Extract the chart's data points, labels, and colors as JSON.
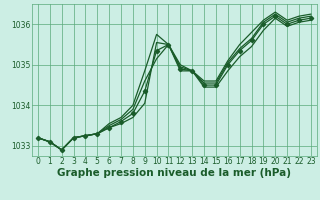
{
  "title": "Graphe pression niveau de la mer (hPa)",
  "bg_color": "#cceee4",
  "grid_color": "#5aaa7a",
  "line_color": "#1a5c2a",
  "xlim": [
    -0.5,
    23.5
  ],
  "ylim": [
    1032.75,
    1036.5
  ],
  "yticks": [
    1033,
    1034,
    1035,
    1036
  ],
  "xticks": [
    0,
    1,
    2,
    3,
    4,
    5,
    6,
    7,
    8,
    9,
    10,
    11,
    12,
    13,
    14,
    15,
    16,
    17,
    18,
    19,
    20,
    21,
    22,
    23
  ],
  "series": [
    {
      "y": [
        1033.2,
        1033.1,
        1032.9,
        1033.2,
        1033.25,
        1033.3,
        1033.45,
        1033.55,
        1033.7,
        1034.05,
        1035.55,
        1035.5,
        1034.85,
        1034.85,
        1034.45,
        1034.45,
        1034.85,
        1035.2,
        1035.45,
        1035.85,
        1036.15,
        1035.95,
        1036.05,
        1036.1
      ],
      "marker": false,
      "lw": 0.9
    },
    {
      "y": [
        1033.2,
        1033.1,
        1032.9,
        1033.2,
        1033.25,
        1033.3,
        1033.45,
        1033.6,
        1033.8,
        1034.35,
        1035.35,
        1035.5,
        1034.9,
        1034.85,
        1034.5,
        1034.5,
        1035.0,
        1035.35,
        1035.6,
        1036.0,
        1036.2,
        1036.0,
        1036.1,
        1036.15
      ],
      "marker": true,
      "lw": 0.9
    },
    {
      "y": [
        1033.2,
        1033.1,
        1032.9,
        1033.2,
        1033.25,
        1033.3,
        1033.5,
        1033.65,
        1033.9,
        1034.6,
        1035.15,
        1035.5,
        1034.95,
        1034.85,
        1034.55,
        1034.55,
        1035.05,
        1035.4,
        1035.65,
        1036.05,
        1036.25,
        1036.05,
        1036.15,
        1036.2
      ],
      "marker": false,
      "lw": 0.9
    },
    {
      "y": [
        1033.2,
        1033.1,
        1032.9,
        1033.2,
        1033.25,
        1033.3,
        1033.55,
        1033.7,
        1034.0,
        1034.85,
        1035.75,
        1035.5,
        1035.0,
        1034.85,
        1034.6,
        1034.6,
        1035.1,
        1035.5,
        1035.8,
        1036.1,
        1036.3,
        1036.1,
        1036.2,
        1036.25
      ],
      "marker": false,
      "lw": 0.9
    }
  ],
  "title_fontsize": 7.5,
  "tick_fontsize": 5.5,
  "label_fontsize": 7.5
}
